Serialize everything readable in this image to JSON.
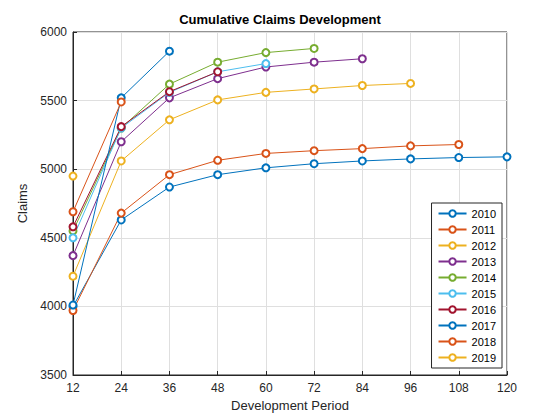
{
  "chart_data": {
    "type": "line",
    "title": "Cumulative Claims Development",
    "x_label": "Development Period",
    "y_label": "Claims",
    "x": [
      12,
      24,
      36,
      48,
      60,
      72,
      84,
      96,
      108,
      120
    ],
    "xlim": [
      12,
      120
    ],
    "xticks": [
      12,
      24,
      36,
      48,
      60,
      72,
      84,
      96,
      108,
      120
    ],
    "ylim": [
      3500,
      6000
    ],
    "yticks": [
      3500,
      4000,
      4500,
      5000,
      5500,
      6000
    ],
    "grid": true,
    "legend": "lower right",
    "marker": "circle",
    "line_style": "solid",
    "series": [
      {
        "name": "2010",
        "color": "#0072BD",
        "values": [
          4000,
          4630,
          4870,
          4960,
          5010,
          5040,
          5060,
          5075,
          5085,
          5090
        ]
      },
      {
        "name": "2011",
        "color": "#D95319",
        "values": [
          3970,
          4680,
          4960,
          5065,
          5115,
          5135,
          5150,
          5170,
          5180,
          null
        ]
      },
      {
        "name": "2012",
        "color": "#EDB120",
        "values": [
          4220,
          5060,
          5360,
          5505,
          5560,
          5585,
          5610,
          5625,
          null,
          null
        ]
      },
      {
        "name": "2013",
        "color": "#7E2F8E",
        "values": [
          4370,
          5200,
          5520,
          5660,
          5745,
          5780,
          5805,
          null,
          null,
          null
        ]
      },
      {
        "name": "2014",
        "color": "#77AC30",
        "values": [
          4550,
          5300,
          5620,
          5780,
          5850,
          5880,
          null,
          null,
          null,
          null
        ]
      },
      {
        "name": "2015",
        "color": "#4DBEEE",
        "values": [
          4500,
          5300,
          5560,
          5710,
          5770,
          null,
          null,
          null,
          null,
          null
        ]
      },
      {
        "name": "2016",
        "color": "#A2142F",
        "values": [
          4580,
          5310,
          5565,
          5710,
          null,
          null,
          null,
          null,
          null,
          null
        ]
      },
      {
        "name": "2017",
        "color": "#0072BD",
        "values": [
          4010,
          5520,
          5860,
          null,
          null,
          null,
          null,
          null,
          null,
          null
        ]
      },
      {
        "name": "2018",
        "color": "#D95319",
        "values": [
          4690,
          5490,
          null,
          null,
          null,
          null,
          null,
          null,
          null,
          null
        ]
      },
      {
        "name": "2019",
        "color": "#EDB120",
        "values": [
          4950,
          null,
          null,
          null,
          null,
          null,
          null,
          null,
          null,
          null
        ]
      }
    ]
  }
}
